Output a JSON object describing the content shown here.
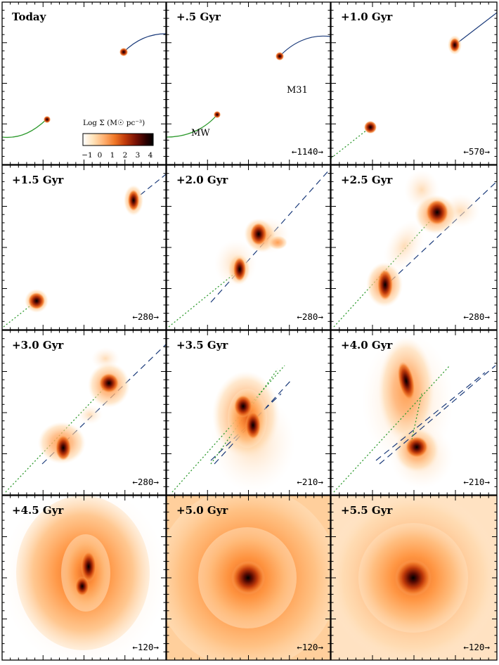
{
  "figure": {
    "panels": [
      {
        "id": "p0",
        "time": "Today",
        "scale": ""
      },
      {
        "id": "p1",
        "time": "+.5 Gyr",
        "scale": "←1140→"
      },
      {
        "id": "p2",
        "time": "+1.0 Gyr",
        "scale": "←570→"
      },
      {
        "id": "p3",
        "time": "+1.5 Gyr",
        "scale": "←280→"
      },
      {
        "id": "p4",
        "time": "+2.0 Gyr",
        "scale": "←280→"
      },
      {
        "id": "p5",
        "time": "+2.5 Gyr",
        "scale": "←280→"
      },
      {
        "id": "p6",
        "time": "+3.0 Gyr",
        "scale": "←280→"
      },
      {
        "id": "p7",
        "time": "+3.5 Gyr",
        "scale": "←210→"
      },
      {
        "id": "p8",
        "time": "+4.0 Gyr",
        "scale": "←210→"
      },
      {
        "id": "p9",
        "time": "+4.5 Gyr",
        "scale": "←120→"
      },
      {
        "id": "p10",
        "time": "+5.0 Gyr",
        "scale": "←120→"
      },
      {
        "id": "p11",
        "time": "+5.5 Gyr",
        "scale": "←120→"
      }
    ],
    "galaxy_labels": {
      "mw": "MW",
      "m31": "M31"
    },
    "colorbar": {
      "title": "Log Σ (M☉ pc⁻³)",
      "ticks": [
        "−1",
        "0",
        "1",
        "2",
        "3",
        "4"
      ],
      "stops": [
        "#ffffff",
        "#ffe2b8",
        "#ffb070",
        "#f07828",
        "#c03a0a",
        "#7a1205",
        "#2a0000",
        "#000000"
      ]
    }
  }
}
